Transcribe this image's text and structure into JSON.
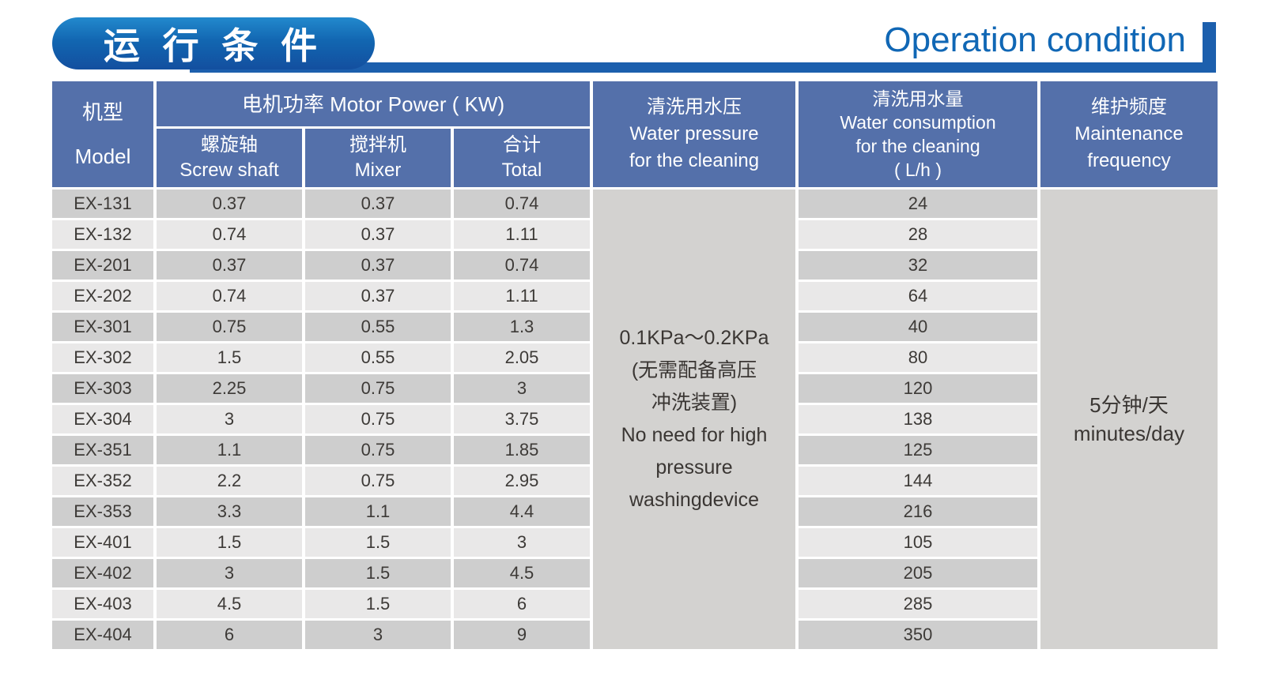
{
  "title": {
    "zh": "运 行 条 件",
    "en": "Operation condition"
  },
  "colors": {
    "header_blue": "#5470aa",
    "title_bar_blue": "#1c5fad",
    "title_text_blue": "#1067b5",
    "pill_gradient_top": "#2289cd",
    "pill_gradient_bottom": "#134f9f",
    "stripe_dark": "#cecece",
    "stripe_light": "#e9e8e8",
    "merged_gray": "#d3d2d0"
  },
  "table": {
    "headers": {
      "model_zh": "机型",
      "model_en": "Model",
      "motor_power": "电机功率  Motor Power ( KW)",
      "screw_zh": "螺旋轴",
      "screw_en": "Screw shaft",
      "mixer_zh": "搅拌机",
      "mixer_en": "Mixer",
      "total_zh": "合计",
      "total_en": "Total",
      "pressure": [
        "清洗用水压",
        "Water pressure",
        "for the cleaning"
      ],
      "consumption": [
        "清洗用水量",
        "Water consumption",
        "for the cleaning",
        "( L/h )"
      ],
      "maintenance": [
        "维护频度",
        "Maintenance",
        "frequency"
      ]
    },
    "rows": [
      {
        "model": "EX-131",
        "screw": "0.37",
        "mixer": "0.37",
        "total": "0.74",
        "water": "24"
      },
      {
        "model": "EX-132",
        "screw": "0.74",
        "mixer": "0.37",
        "total": "1.11",
        "water": "28"
      },
      {
        "model": "EX-201",
        "screw": "0.37",
        "mixer": "0.37",
        "total": "0.74",
        "water": "32"
      },
      {
        "model": "EX-202",
        "screw": "0.74",
        "mixer": "0.37",
        "total": "1.11",
        "water": "64"
      },
      {
        "model": "EX-301",
        "screw": "0.75",
        "mixer": "0.55",
        "total": "1.3",
        "water": "40"
      },
      {
        "model": "EX-302",
        "screw": "1.5",
        "mixer": "0.55",
        "total": "2.05",
        "water": "80"
      },
      {
        "model": "EX-303",
        "screw": "2.25",
        "mixer": "0.75",
        "total": "3",
        "water": "120"
      },
      {
        "model": "EX-304",
        "screw": "3",
        "mixer": "0.75",
        "total": "3.75",
        "water": "138"
      },
      {
        "model": "EX-351",
        "screw": "1.1",
        "mixer": "0.75",
        "total": "1.85",
        "water": "125"
      },
      {
        "model": "EX-352",
        "screw": "2.2",
        "mixer": "0.75",
        "total": "2.95",
        "water": "144"
      },
      {
        "model": "EX-353",
        "screw": "3.3",
        "mixer": "1.1",
        "total": "4.4",
        "water": "216"
      },
      {
        "model": "EX-401",
        "screw": "1.5",
        "mixer": "1.5",
        "total": "3",
        "water": "105"
      },
      {
        "model": "EX-402",
        "screw": "3",
        "mixer": "1.5",
        "total": "4.5",
        "water": "205"
      },
      {
        "model": "EX-403",
        "screw": "4.5",
        "mixer": "1.5",
        "total": "6",
        "water": "285"
      },
      {
        "model": "EX-404",
        "screw": "6",
        "mixer": "3",
        "total": "9",
        "water": "350"
      }
    ],
    "pressure_cell": [
      "0.1KPa～0.2KPa",
      "(无需配备高压",
      "冲洗装置)",
      "No need for high",
      "pressure",
      "washingdevice"
    ],
    "maintenance_cell": [
      "5分钟/天",
      "minutes/day"
    ]
  }
}
